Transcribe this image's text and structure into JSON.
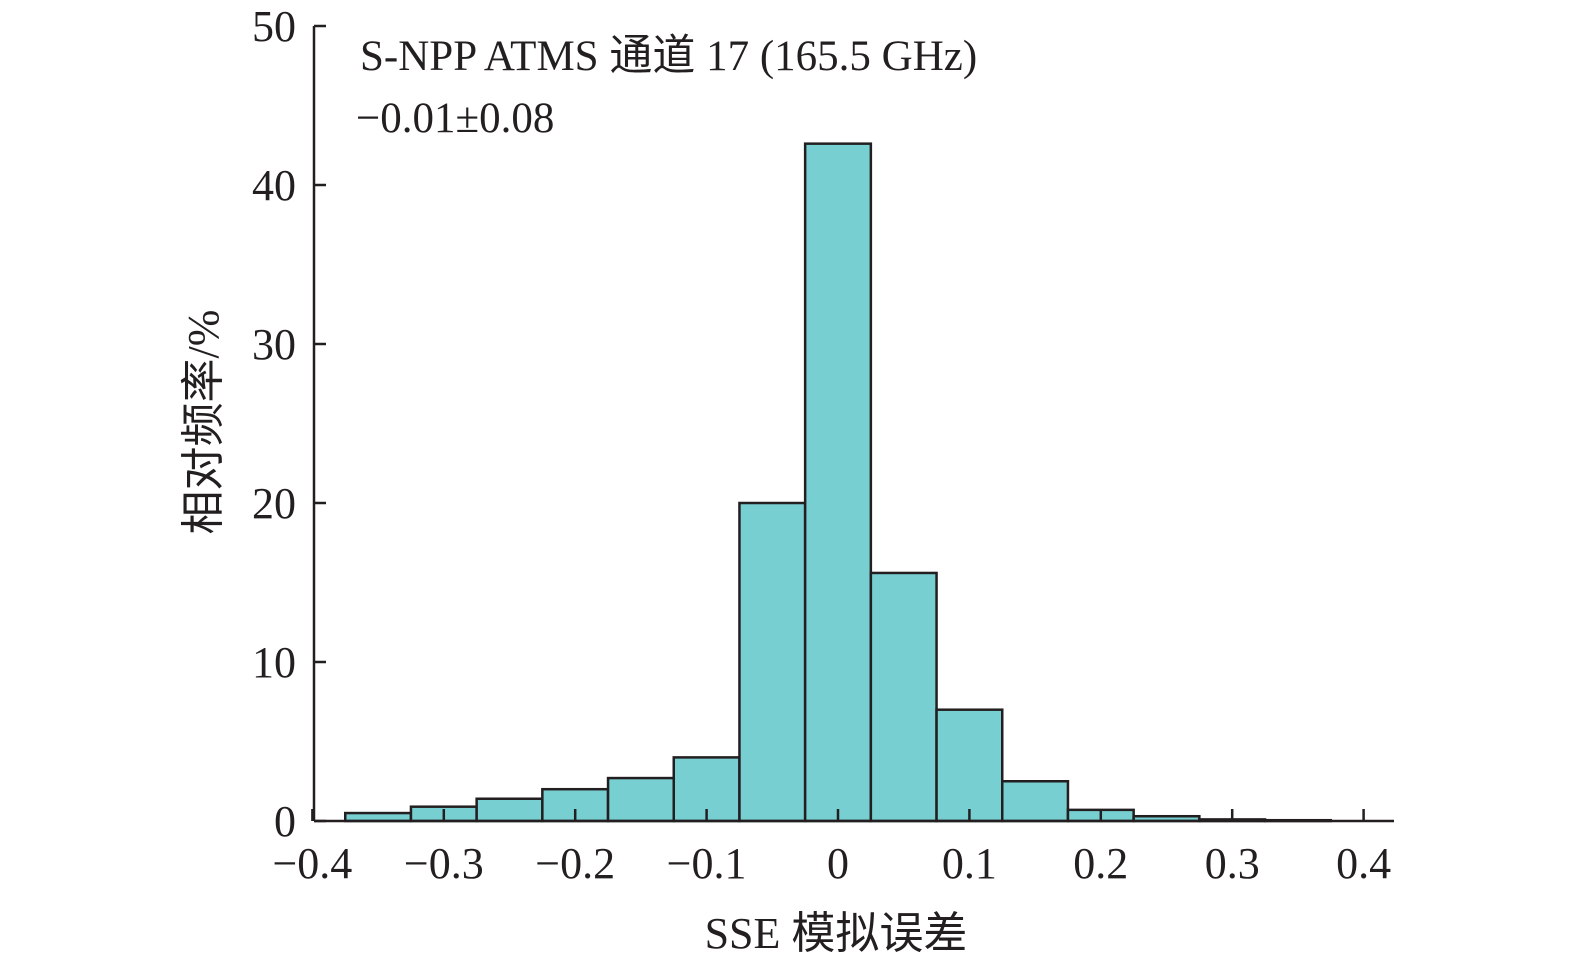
{
  "chart_data": {
    "type": "bar",
    "annotation": [
      "S-NPP ATMS 通道 17 (165.5 GHz)",
      "−0.01±0.08"
    ],
    "xlabel": "SSE 模拟误差",
    "ylabel": "相对频率/%",
    "xlim": [
      -0.4,
      0.4
    ],
    "ylim": [
      0,
      50
    ],
    "xticks": [
      -0.4,
      -0.3,
      -0.2,
      -0.1,
      0,
      0.1,
      0.2,
      0.3,
      0.4
    ],
    "xtick_labels": [
      "−0.4",
      "−0.3",
      "−0.2",
      "−0.1",
      "0",
      "0.1",
      "0.2",
      "0.3",
      "0.4"
    ],
    "yticks": [
      0,
      10,
      20,
      30,
      40,
      50
    ],
    "ytick_labels": [
      "0",
      "10",
      "20",
      "30",
      "40",
      "50"
    ],
    "bin_width": 0.05,
    "bin_centers": [
      -0.35,
      -0.3,
      -0.25,
      -0.2,
      -0.15,
      -0.1,
      -0.05,
      0,
      0.05,
      0.1,
      0.15,
      0.2,
      0.25,
      0.3,
      0.35
    ],
    "values": [
      0.5,
      0.9,
      1.4,
      2.0,
      2.7,
      4.0,
      20.0,
      42.6,
      15.6,
      7.0,
      2.5,
      0.7,
      0.3,
      0.1,
      0.05
    ],
    "grid": false,
    "colors": {
      "bar_fill": "#77cfd1",
      "bar_edge": "#231f20",
      "axis": "#231f20",
      "text": "#231f20"
    }
  }
}
